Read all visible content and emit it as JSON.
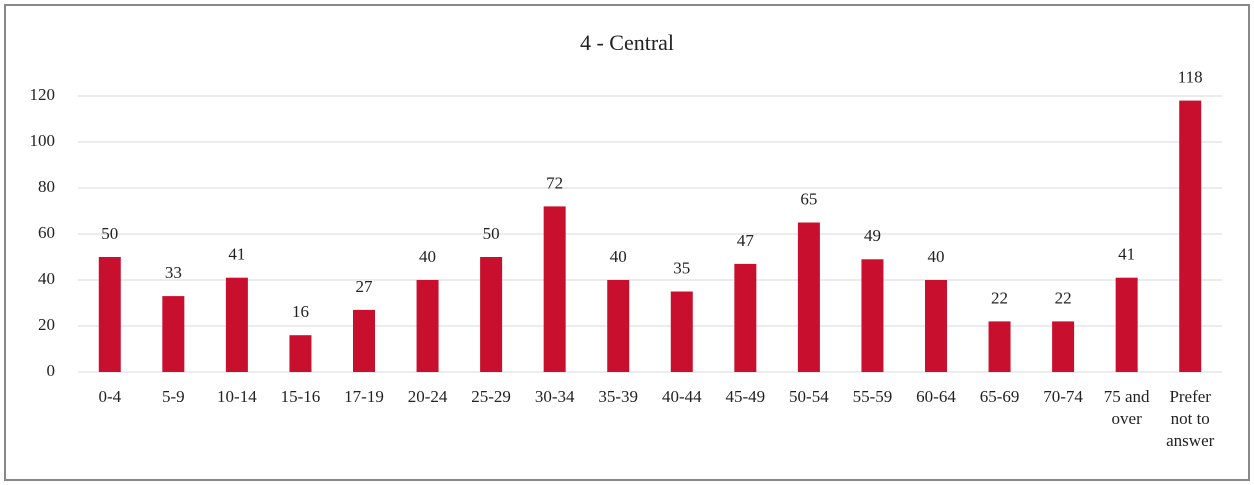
{
  "chart_data": {
    "type": "bar",
    "title": "4 - Central",
    "categories": [
      "0-4",
      "5-9",
      "10-14",
      "15-16",
      "17-19",
      "20-24",
      "25-29",
      "30-34",
      "35-39",
      "40-44",
      "45-49",
      "50-54",
      "55-59",
      "60-64",
      "65-69",
      "70-74",
      "75 and over",
      "Prefer not to answer"
    ],
    "values": [
      50,
      33,
      41,
      16,
      27,
      40,
      50,
      72,
      40,
      35,
      47,
      65,
      49,
      40,
      22,
      22,
      41,
      118
    ],
    "color": "#c8102e",
    "ylim": [
      0,
      120
    ],
    "yticks": [
      0,
      20,
      40,
      60,
      80,
      100,
      120
    ],
    "grid": true
  }
}
